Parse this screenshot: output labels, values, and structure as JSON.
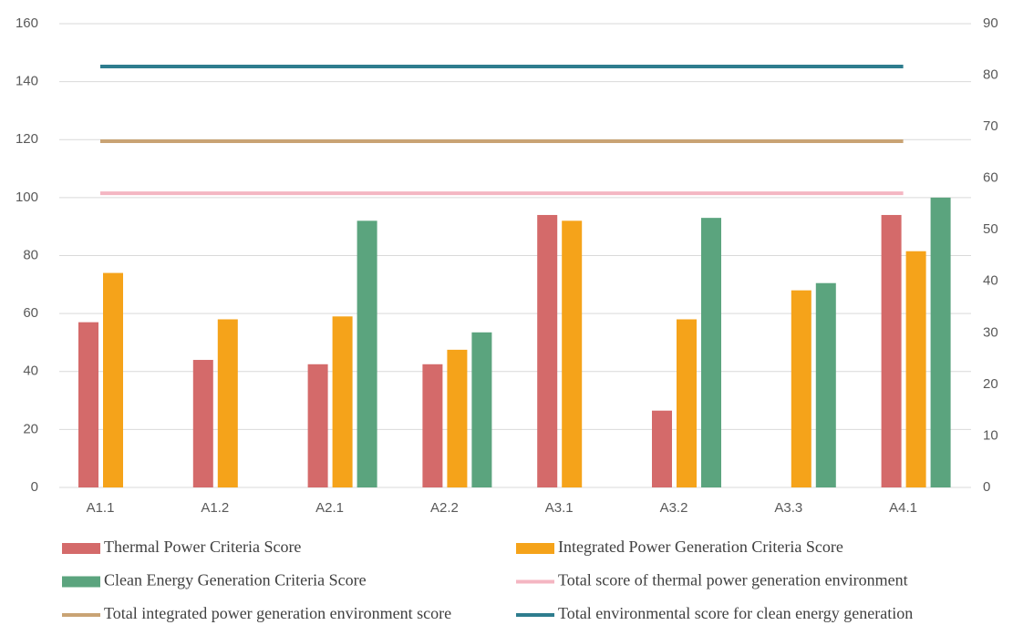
{
  "chart_data": {
    "type": "bar",
    "categories": [
      "A1.1",
      "A1.2",
      "A2.1",
      "A2.2",
      "A3.1",
      "A3.2",
      "A3.3",
      "A4.1"
    ],
    "series": [
      {
        "name": "Thermal Power Criteria Score",
        "color": "#d46a6a",
        "values": [
          57,
          44,
          42.5,
          42.5,
          94,
          26.5,
          null,
          94
        ]
      },
      {
        "name": "Integrated Power Generation Criteria Score",
        "color": "#f5a31a",
        "values": [
          74,
          58,
          59,
          47.5,
          92,
          58,
          68,
          81.5
        ]
      },
      {
        "name": "Clean Energy Generation Criteria Score",
        "color": "#5ba47e",
        "values": [
          null,
          null,
          92,
          53.5,
          null,
          93,
          70.5,
          100
        ]
      },
      {
        "name": "Total score of thermal power generation environment",
        "color": "#f4b6c2",
        "type": "line",
        "axis": "y2",
        "values": [
          57.1,
          57.1,
          57.1,
          57.1,
          57.1,
          57.1,
          57.1,
          57.1
        ]
      },
      {
        "name": "Total integrated power generation environment score",
        "color": "#c9a374",
        "type": "line",
        "axis": "y2",
        "values": [
          67.2,
          67.2,
          67.2,
          67.2,
          67.2,
          67.2,
          67.2,
          67.2
        ]
      },
      {
        "name": "Total environmental score for clean energy generation",
        "color": "#2e7d8e",
        "type": "line",
        "axis": "y2",
        "values": [
          81.7,
          81.7,
          81.7,
          81.7,
          81.7,
          81.7,
          81.7,
          81.7
        ]
      }
    ],
    "ylim": [
      0,
      160
    ],
    "yticks": [
      0,
      20,
      40,
      60,
      80,
      100,
      120,
      140,
      160
    ],
    "y2lim": [
      0,
      90
    ],
    "y2ticks": [
      0,
      10,
      20,
      30,
      40,
      50,
      60,
      70,
      80,
      90
    ],
    "grid": true,
    "legend": "bottom"
  }
}
